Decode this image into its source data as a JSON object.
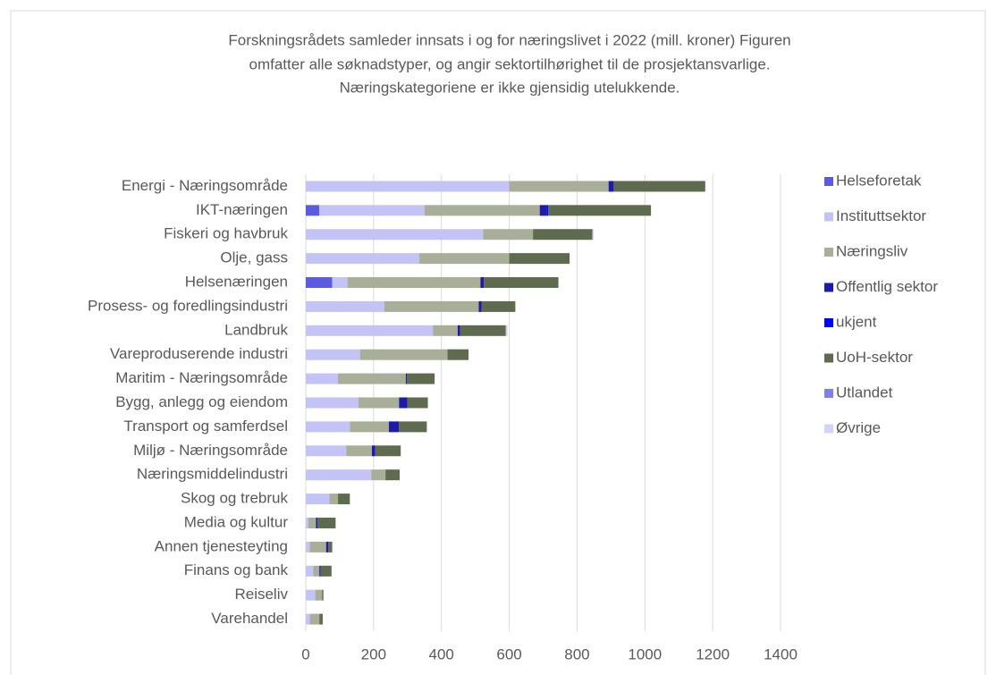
{
  "chart_data": {
    "type": "stacked_barh",
    "title": [
      "Forskningsrådets samleder innsats i og for næringslivet i 2022 (mill. kroner) Figuren",
      "omfatter alle søknadstyper, og angir sektortilhørighet til de prosjektansvarlige.",
      "Næringskategoriene er ikke gjensidig utelukkende."
    ],
    "categories": [
      "Energi - Næringsområde",
      "IKT-næringen",
      "Fiskeri og havbruk",
      "Olje, gass",
      "Helsenæringen",
      "Prosess- og foredlingsindustri",
      "Landbruk",
      "Vareproduserende industri",
      "Maritim - Næringsområde",
      "Bygg, anlegg og eiendom",
      "Transport og samferdsel",
      "Miljø - Næringsområde",
      "Næringsmiddelindustri",
      "Skog og trebruk",
      "Media og kultur",
      "Annen tjenesteyting",
      "Finans og bank",
      "Reiseliv",
      "Varehandel"
    ],
    "series": [
      {
        "name": "Helseforetak",
        "color": "#5b5be0",
        "values": [
          0,
          40,
          0,
          0,
          78,
          0,
          0,
          0,
          0,
          0,
          0,
          0,
          0,
          0,
          0,
          0,
          0,
          0,
          0
        ]
      },
      {
        "name": "Instituttsektor",
        "color": "#c3c3f5",
        "values": [
          600,
          310,
          523,
          335,
          45,
          232,
          375,
          160,
          95,
          155,
          130,
          120,
          193,
          70,
          8,
          12,
          22,
          28,
          12
        ]
      },
      {
        "name": "Næringsliv",
        "color": "#a9ae98",
        "values": [
          293,
          340,
          147,
          265,
          392,
          278,
          73,
          258,
          200,
          120,
          115,
          75,
          42,
          25,
          22,
          48,
          18,
          20,
          28
        ]
      },
      {
        "name": "Offentlig sektor",
        "color": "#1c1ca8",
        "values": [
          15,
          20,
          0,
          0,
          10,
          8,
          7,
          0,
          3,
          25,
          30,
          10,
          0,
          0,
          5,
          6,
          4,
          0,
          0
        ]
      },
      {
        "name": "ukjent",
        "color": "#0000ff",
        "values": [
          0,
          5,
          0,
          0,
          0,
          0,
          0,
          0,
          0,
          0,
          0,
          0,
          0,
          0,
          0,
          0,
          0,
          0,
          0
        ]
      },
      {
        "name": "UoH-sektor",
        "color": "#5f6b4f",
        "values": [
          270,
          303,
          175,
          178,
          220,
          100,
          135,
          62,
          82,
          60,
          82,
          75,
          42,
          35,
          53,
          12,
          32,
          4,
          10
        ]
      },
      {
        "name": "Utlandet",
        "color": "#8080e6",
        "values": [
          0,
          0,
          0,
          0,
          0,
          0,
          0,
          0,
          0,
          0,
          0,
          0,
          0,
          0,
          0,
          0,
          0,
          0,
          0
        ]
      },
      {
        "name": "Øvrige",
        "color": "#d2d2fa",
        "values": [
          0,
          0,
          4,
          0,
          0,
          0,
          5,
          0,
          0,
          0,
          0,
          0,
          0,
          0,
          0,
          0,
          0,
          0,
          0
        ]
      }
    ],
    "xlim": [
      0,
      1400
    ],
    "xticks": [
      0,
      200,
      400,
      600,
      800,
      1000,
      1200,
      1400
    ],
    "grid": true,
    "legend": "right"
  }
}
